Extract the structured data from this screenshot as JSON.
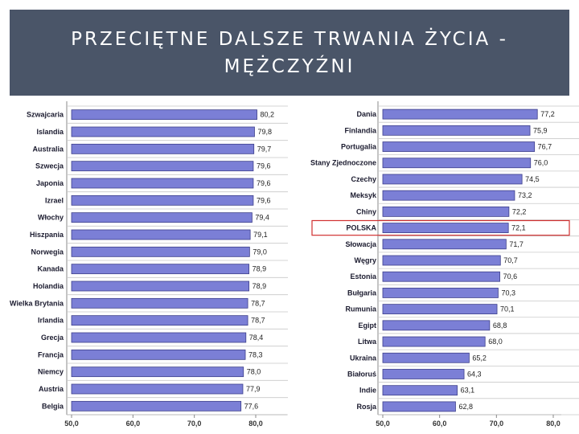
{
  "title": {
    "line1": "PRZECIĘTNE DALSZE TRWANIA ŻYCIA -",
    "line2": "MĘŻCZYŹNI"
  },
  "colors": {
    "bar": "#7b7fd6",
    "bar_edge": "#3d3f8a",
    "highlight": "#d03030",
    "title_bg": "#4a5568"
  },
  "chart_data": [
    {
      "type": "bar",
      "orientation": "horizontal",
      "categories": [
        "Szwajcaria",
        "Islandia",
        "Australia",
        "Szwecja",
        "Japonia",
        "Izrael",
        "Włochy",
        "Hiszpania",
        "Norwegia",
        "Kanada",
        "Holandia",
        "Wielka Brytania",
        "Irlandia",
        "Grecja",
        "Francja",
        "Niemcy",
        "Austria",
        "Belgia"
      ],
      "values": [
        80.2,
        79.8,
        79.7,
        79.6,
        79.6,
        79.6,
        79.4,
        79.1,
        79.0,
        78.9,
        78.9,
        78.7,
        78.7,
        78.4,
        78.3,
        78.0,
        77.9,
        77.6
      ],
      "value_labels": [
        "80,2",
        "79,8",
        "79,7",
        "79,6",
        "79,6",
        "79,6",
        "79,4",
        "79,1",
        "79,0",
        "78,9",
        "78,9",
        "78,7",
        "78,7",
        "78,4",
        "78,3",
        "78,0",
        "77,9",
        "77,6"
      ],
      "xlim": [
        50,
        80
      ],
      "xticks": [
        "50,0",
        "60,0",
        "70,0",
        "80,0"
      ]
    },
    {
      "type": "bar",
      "orientation": "horizontal",
      "categories": [
        "Dania",
        "Finlandia",
        "Portugalia",
        "Stany Zjednoczone",
        "Czechy",
        "Meksyk",
        "Chiny",
        "POLSKA",
        "Słowacja",
        "Węgry",
        "Estonia",
        "Bułgaria",
        "Rumunia",
        "Egipt",
        "Litwa",
        "Ukraina",
        "Białoruś",
        "Indie",
        "Rosja"
      ],
      "values": [
        77.2,
        75.9,
        76.7,
        76.0,
        74.5,
        73.2,
        72.2,
        72.1,
        71.7,
        70.7,
        70.6,
        70.3,
        70.1,
        68.8,
        68.0,
        65.2,
        64.3,
        63.1,
        62.8
      ],
      "value_labels": [
        "77,2",
        "75,9",
        "76,7",
        "76,0",
        "74,5",
        "73,2",
        "72,2",
        "72,1",
        "71,7",
        "70,7",
        "70,6",
        "70,3",
        "70,1",
        "68,8",
        "68,0",
        "65,2",
        "64,3",
        "63,1",
        "62,8"
      ],
      "highlight": "POLSKA",
      "xlim": [
        50,
        80
      ],
      "xticks": [
        "50,0",
        "60,0",
        "70,0",
        "80,0"
      ]
    }
  ]
}
